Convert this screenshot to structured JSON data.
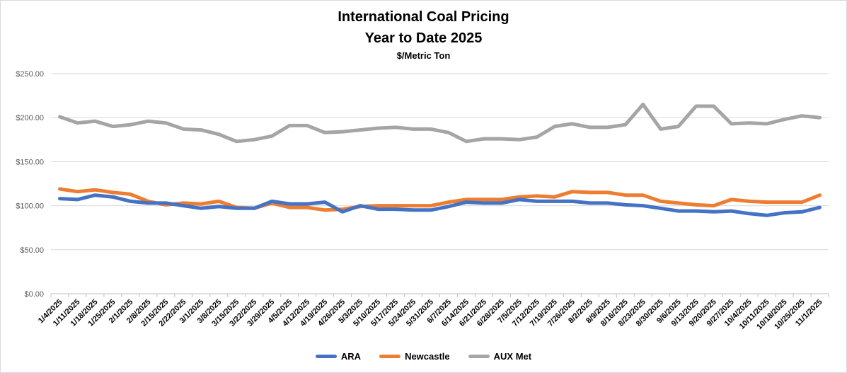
{
  "chart_data": {
    "type": "line",
    "title": "International Coal Pricing",
    "subtitle": "Year to Date 2025",
    "units": "$/Metric Ton",
    "ylim": [
      0,
      250
    ],
    "yticks": [
      "$0.00",
      "$50.00",
      "$100.00",
      "$150.00",
      "$200.00",
      "$250.00"
    ],
    "ytick_values": [
      0,
      50,
      100,
      150,
      200,
      250
    ],
    "grid": "horizontal",
    "legend": "bottom",
    "x": [
      "1/4/2025",
      "1/11/2025",
      "1/18/2025",
      "1/25/2025",
      "2/1/2025",
      "2/8/2025",
      "2/15/2025",
      "2/22/2025",
      "3/1/2025",
      "3/8/2025",
      "3/15/2025",
      "3/22/2025",
      "3/29/2025",
      "4/5/2025",
      "4/12/2025",
      "4/19/2025",
      "4/26/2025",
      "5/3/2025",
      "5/10/2025",
      "5/17/2025",
      "5/24/2025",
      "5/31/2025",
      "6/7/2025",
      "6/14/2025",
      "6/21/2025",
      "6/28/2025",
      "7/5/2025",
      "7/12/2025",
      "7/19/2025",
      "7/26/2025",
      "8/2/2025",
      "8/9/2025",
      "8/16/2025",
      "8/23/2025",
      "8/30/2025",
      "9/6/2025",
      "9/13/2025",
      "9/20/2025",
      "9/27/2025",
      "10/4/2025",
      "10/11/2025",
      "10/18/2025",
      "10/25/2025",
      "11/1/2025"
    ],
    "series": [
      {
        "name": "ARA",
        "color": "#4472c4",
        "values": [
          108,
          107,
          112,
          110,
          105,
          103,
          103,
          100,
          97,
          99,
          97,
          97,
          105,
          102,
          102,
          104,
          93,
          100,
          96,
          96,
          95,
          95,
          99,
          104,
          103,
          103,
          107,
          105,
          105,
          105,
          103,
          103,
          101,
          100,
          97,
          94,
          94,
          93,
          94,
          91,
          89,
          92,
          93,
          98
        ]
      },
      {
        "name": "Newcastle",
        "color": "#ed7d31",
        "values": [
          119,
          116,
          118,
          115,
          113,
          105,
          101,
          103,
          102,
          105,
          98,
          97,
          103,
          98,
          98,
          95,
          96,
          99,
          100,
          100,
          100,
          100,
          104,
          107,
          107,
          107,
          110,
          111,
          110,
          116,
          115,
          115,
          112,
          112,
          105,
          103,
          101,
          100,
          107,
          105,
          104,
          104,
          104,
          112
        ]
      },
      {
        "name": "AUX Met",
        "color": "#a5a5a5",
        "values": [
          201,
          194,
          196,
          190,
          192,
          196,
          194,
          187,
          186,
          181,
          173,
          175,
          179,
          191,
          191,
          183,
          184,
          186,
          188,
          189,
          187,
          187,
          183,
          173,
          176,
          176,
          175,
          178,
          190,
          193,
          189,
          189,
          192,
          215,
          187,
          190,
          213,
          213,
          193,
          194,
          193,
          198,
          202,
          200
        ]
      }
    ]
  }
}
